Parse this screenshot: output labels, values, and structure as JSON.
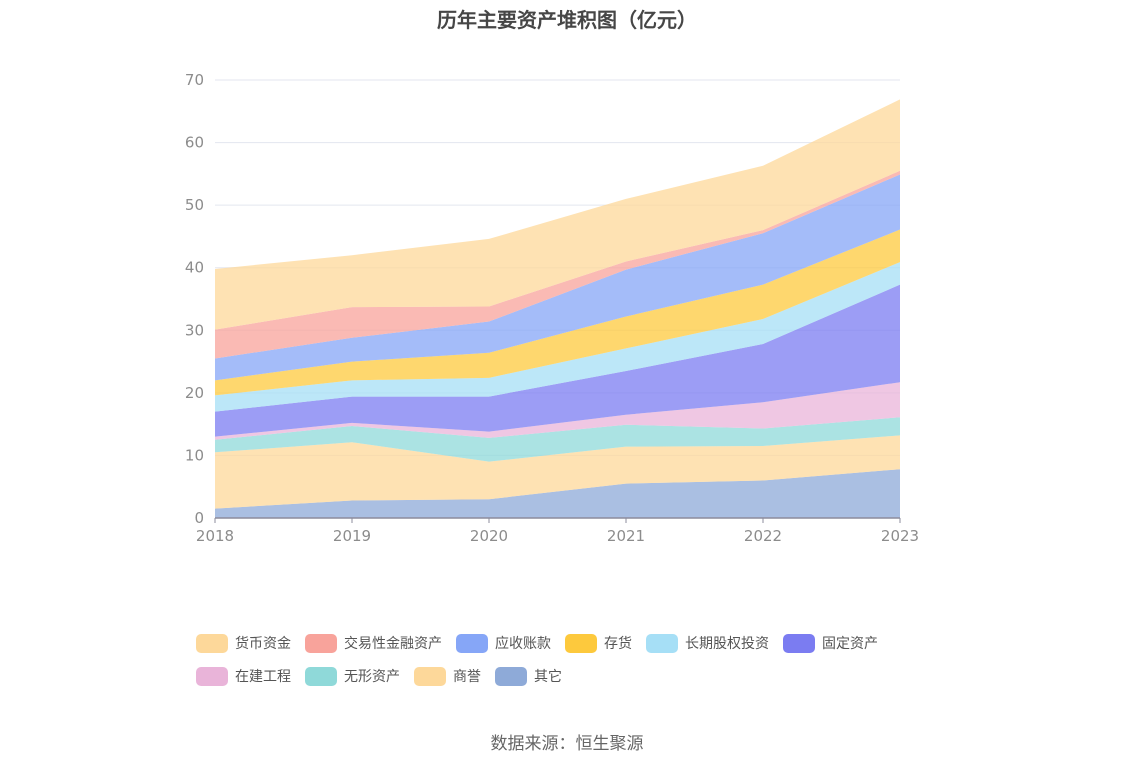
{
  "chart_data": {
    "type": "area",
    "stacked": true,
    "title": "历年主要资产堆积图（亿元）",
    "x": [
      "2018",
      "2019",
      "2020",
      "2021",
      "2022",
      "2023"
    ],
    "ylim": [
      0,
      70
    ],
    "yticks": [
      0,
      10,
      20,
      30,
      40,
      50,
      60,
      70
    ],
    "grid": true,
    "legend_position": "bottom",
    "series": [
      {
        "name": "其它",
        "color": "#8eaad8",
        "values": [
          1.5,
          2.8,
          3.0,
          5.5,
          6.0,
          7.8
        ]
      },
      {
        "name": "商誉",
        "color": "#fdd89a",
        "values": [
          9.0,
          9.3,
          6.0,
          5.9,
          5.5,
          5.4
        ]
      },
      {
        "name": "无形资产",
        "color": "#8fd9d9",
        "values": [
          2.0,
          2.6,
          3.8,
          3.5,
          2.8,
          2.9
        ]
      },
      {
        "name": "在建工程",
        "color": "#e9b4d9",
        "values": [
          0.5,
          0.5,
          1.0,
          1.6,
          4.2,
          5.6
        ]
      },
      {
        "name": "固定资产",
        "color": "#7b7cf1",
        "values": [
          4.0,
          4.2,
          5.6,
          7.0,
          9.3,
          15.6
        ]
      },
      {
        "name": "长期股权投资",
        "color": "#a6dff6",
        "values": [
          2.6,
          2.6,
          3.0,
          3.6,
          4.0,
          3.6
        ]
      },
      {
        "name": "存货",
        "color": "#fdc93d",
        "values": [
          2.4,
          3.0,
          4.0,
          5.1,
          5.5,
          5.2
        ]
      },
      {
        "name": "应收账款",
        "color": "#86a6f7",
        "values": [
          3.5,
          3.8,
          5.0,
          7.5,
          8.2,
          8.8
        ]
      },
      {
        "name": "交易性金融资产",
        "color": "#f8a39b",
        "values": [
          4.6,
          4.9,
          2.4,
          1.3,
          0.5,
          0.6
        ]
      },
      {
        "name": "货币资金",
        "color": "#fdd89a",
        "values": [
          9.7,
          8.3,
          10.8,
          10.0,
          10.3,
          11.4
        ]
      }
    ]
  },
  "legend": {
    "rows": [
      [
        {
          "label": "货币资金",
          "color": "#fdd89a"
        },
        {
          "label": "交易性金融资产",
          "color": "#f8a39b"
        },
        {
          "label": "应收账款",
          "color": "#86a6f7"
        },
        {
          "label": "存货",
          "color": "#fdc93d"
        },
        {
          "label": "长期股权投资",
          "color": "#a6dff6"
        },
        {
          "label": "固定资产",
          "color": "#7b7cf1"
        }
      ],
      [
        {
          "label": "在建工程",
          "color": "#e9b4d9"
        },
        {
          "label": "无形资产",
          "color": "#8fd9d9"
        },
        {
          "label": "商誉",
          "color": "#fdd89a"
        },
        {
          "label": "其它",
          "color": "#8eaad8"
        }
      ]
    ]
  },
  "source": "数据来源：恒生聚源"
}
